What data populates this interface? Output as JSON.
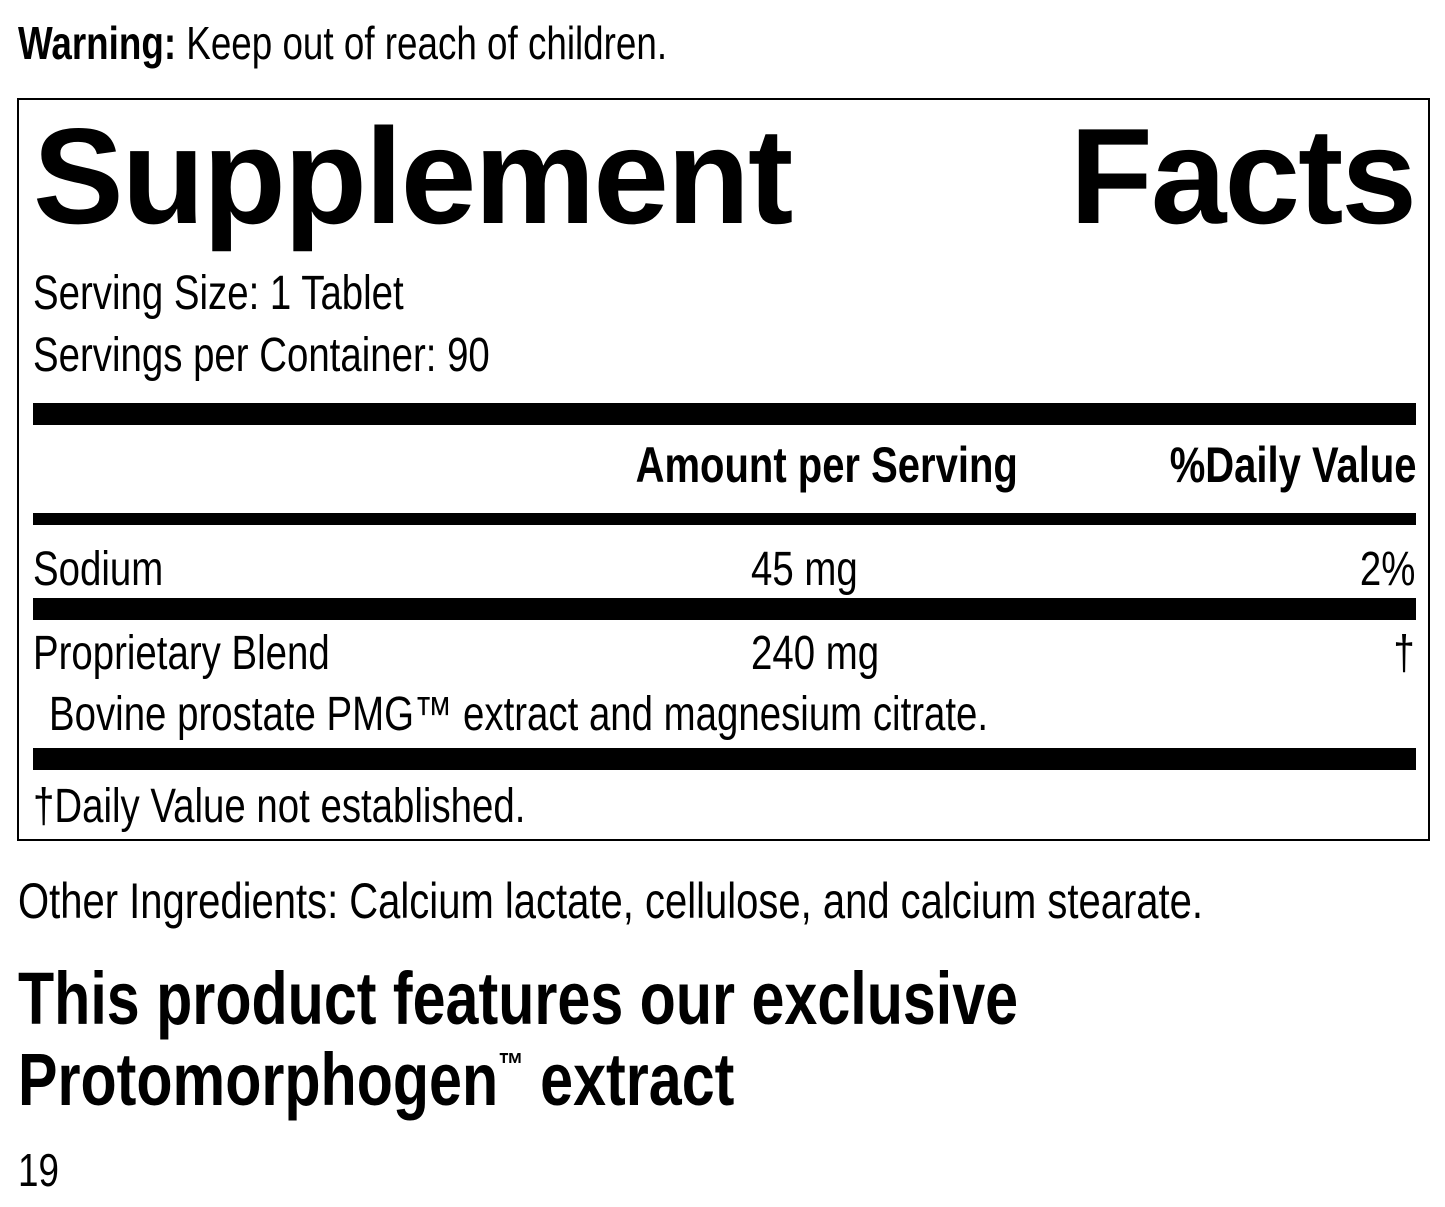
{
  "warning": {
    "label": "Warning:",
    "text": " Keep out of reach of children."
  },
  "facts": {
    "title_word1": "Supplement",
    "title_word2": "Facts",
    "serving_size": "Serving Size: 1 Tablet",
    "servings_per_container": "Servings per Container: 90",
    "header": {
      "amount": "Amount per Serving",
      "daily_value": "%Daily Value"
    },
    "rows": [
      {
        "name": "Sodium",
        "amount": "45 mg",
        "dv": "2%"
      },
      {
        "name": "Proprietary Blend",
        "amount": "240 mg",
        "dv": "†",
        "detail": "Bovine prostate PMG™ extract and magnesium citrate."
      }
    ],
    "footnote": "†Daily Value not established."
  },
  "other_ingredients": "Other Ingredients: Calcium lactate, cellulose, and calcium stearate.",
  "feature": {
    "line1": "This product features our exclusive",
    "line2a": "Protomorphogen",
    "tm": "™",
    "line2b": " extract"
  },
  "page_number": "19"
}
